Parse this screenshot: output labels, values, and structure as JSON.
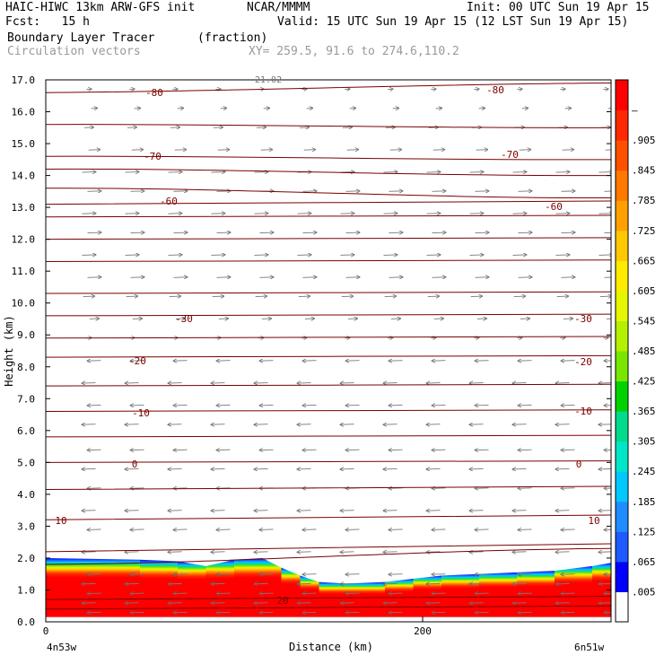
{
  "header": {
    "model": "HAIC-HIWC 13km ARW-GFS init",
    "org": "NCAR/MMMM",
    "init": "Init: 00 UTC Sun 19 Apr 15",
    "fcst": "Fcst:   15 h",
    "valid": "Valid: 15 UTC Sun 19 Apr 15 (12 LST Sun 19 Apr 15)",
    "field": "Boundary Layer Tracer",
    "units": "(fraction)",
    "vectors": "Circulation vectors",
    "xy": "XY= 259.5, 91.6 to 274.6,110.2"
  },
  "chart_data": {
    "type": "heatmap",
    "xlabel": "Distance (km)",
    "ylabel": "Height (km)",
    "x_ticks": [
      "0",
      "200"
    ],
    "x_end_labels": [
      "4n53w",
      "6n51w"
    ],
    "xlim": [
      0,
      300
    ],
    "ylim": [
      0,
      17
    ],
    "y_ticks": [
      "0.0",
      "1.0",
      "2.0",
      "3.0",
      "4.0",
      "5.0",
      "6.0",
      "7.0",
      "8.0",
      "9.0",
      "10.0",
      "11.0",
      "12.0",
      "13.0",
      "14.0",
      "15.0",
      "16.0",
      "17.0"
    ],
    "colorbar_labels": [
      ".005",
      ".065",
      ".125",
      ".185",
      ".245",
      ".305",
      ".365",
      ".425",
      ".485",
      ".545",
      ".605",
      ".665",
      ".725",
      ".785",
      ".845",
      ".905",
      "1"
    ],
    "colorbar_colors": [
      "#ffffff",
      "#0000ff",
      "#1e5aff",
      "#1f8cff",
      "#00c8ff",
      "#00e6c8",
      "#00dc8c",
      "#00d200",
      "#78e600",
      "#b4f000",
      "#e6f500",
      "#ffeb00",
      "#ffc800",
      "#ffa000",
      "#ff7800",
      "#ff5000",
      "#ff2800",
      "#ff0000"
    ],
    "contour_labels": [
      {
        "text": "-80",
        "left_km": -80,
        "right_km": -80
      },
      {
        "text": "-70",
        "left_km": -70,
        "right_km": -70
      },
      {
        "text": "-60",
        "left_km": -60,
        "right_km": -60
      },
      {
        "text": "-30",
        "left_km": -30,
        "right_km": -30
      },
      {
        "text": "-20",
        "left_km": -20,
        "right_km": -20
      },
      {
        "text": "-10",
        "left_km": -10,
        "right_km": -10
      },
      {
        "text": "0",
        "left_km": 0,
        "right_km": 0
      },
      {
        "text": "10",
        "left_km": 10,
        "right_km": 10
      },
      {
        "text": "20",
        "left_km": 20,
        "right_km": 20
      }
    ],
    "top_label": "21.02",
    "contour_levels_km": [
      0.4,
      0.7,
      1.8,
      2.2,
      3.2,
      4.15,
      5.0,
      5.8,
      6.6,
      7.4,
      8.3,
      8.9,
      9.6,
      10.3,
      11.3,
      12.0,
      12.7,
      13.1,
      13.6,
      14.2,
      14.6,
      15.6,
      16.6
    ],
    "contour_tilt_km": [
      0.1,
      0.1,
      0.5,
      0.25,
      0.15,
      0.1,
      0.05,
      0.05,
      0.05,
      0.05,
      0.05,
      0.05,
      0.05,
      0.05,
      0.05,
      0.05,
      0.05,
      0.1,
      -0.3,
      -0.2,
      -0.1,
      -0.1,
      0.3
    ],
    "boundary_layer_top_km": [
      [
        0,
        2.0
      ],
      [
        50,
        1.95
      ],
      [
        70,
        1.9
      ],
      [
        85,
        1.75
      ],
      [
        100,
        1.95
      ],
      [
        115,
        2.0
      ],
      [
        125,
        1.7
      ],
      [
        135,
        1.45
      ],
      [
        145,
        1.25
      ],
      [
        160,
        1.2
      ],
      [
        180,
        1.25
      ],
      [
        195,
        1.35
      ],
      [
        210,
        1.45
      ],
      [
        230,
        1.5
      ],
      [
        250,
        1.55
      ],
      [
        270,
        1.6
      ],
      [
        290,
        1.75
      ],
      [
        300,
        1.85
      ]
    ],
    "vector_rows_km": [
      0.3,
      0.6,
      0.9,
      1.2,
      1.5,
      2.2,
      2.9,
      3.5,
      4.2,
      4.8,
      5.4,
      6.2,
      6.8,
      7.5,
      8.2,
      8.9,
      9.5,
      10.2,
      10.8,
      11.5,
      12.2,
      12.8,
      13.5,
      14.1,
      14.8,
      15.5,
      16.1,
      16.7
    ],
    "vector_u": [
      -1,
      -1,
      -1,
      -1,
      -1,
      -1,
      -1,
      -1,
      -1,
      -1,
      -1,
      -1,
      -1,
      -1,
      -1,
      0.2,
      0.6,
      0.8,
      1,
      1,
      1,
      1,
      1,
      1,
      0.8,
      0.6,
      0.3,
      0.2
    ]
  }
}
